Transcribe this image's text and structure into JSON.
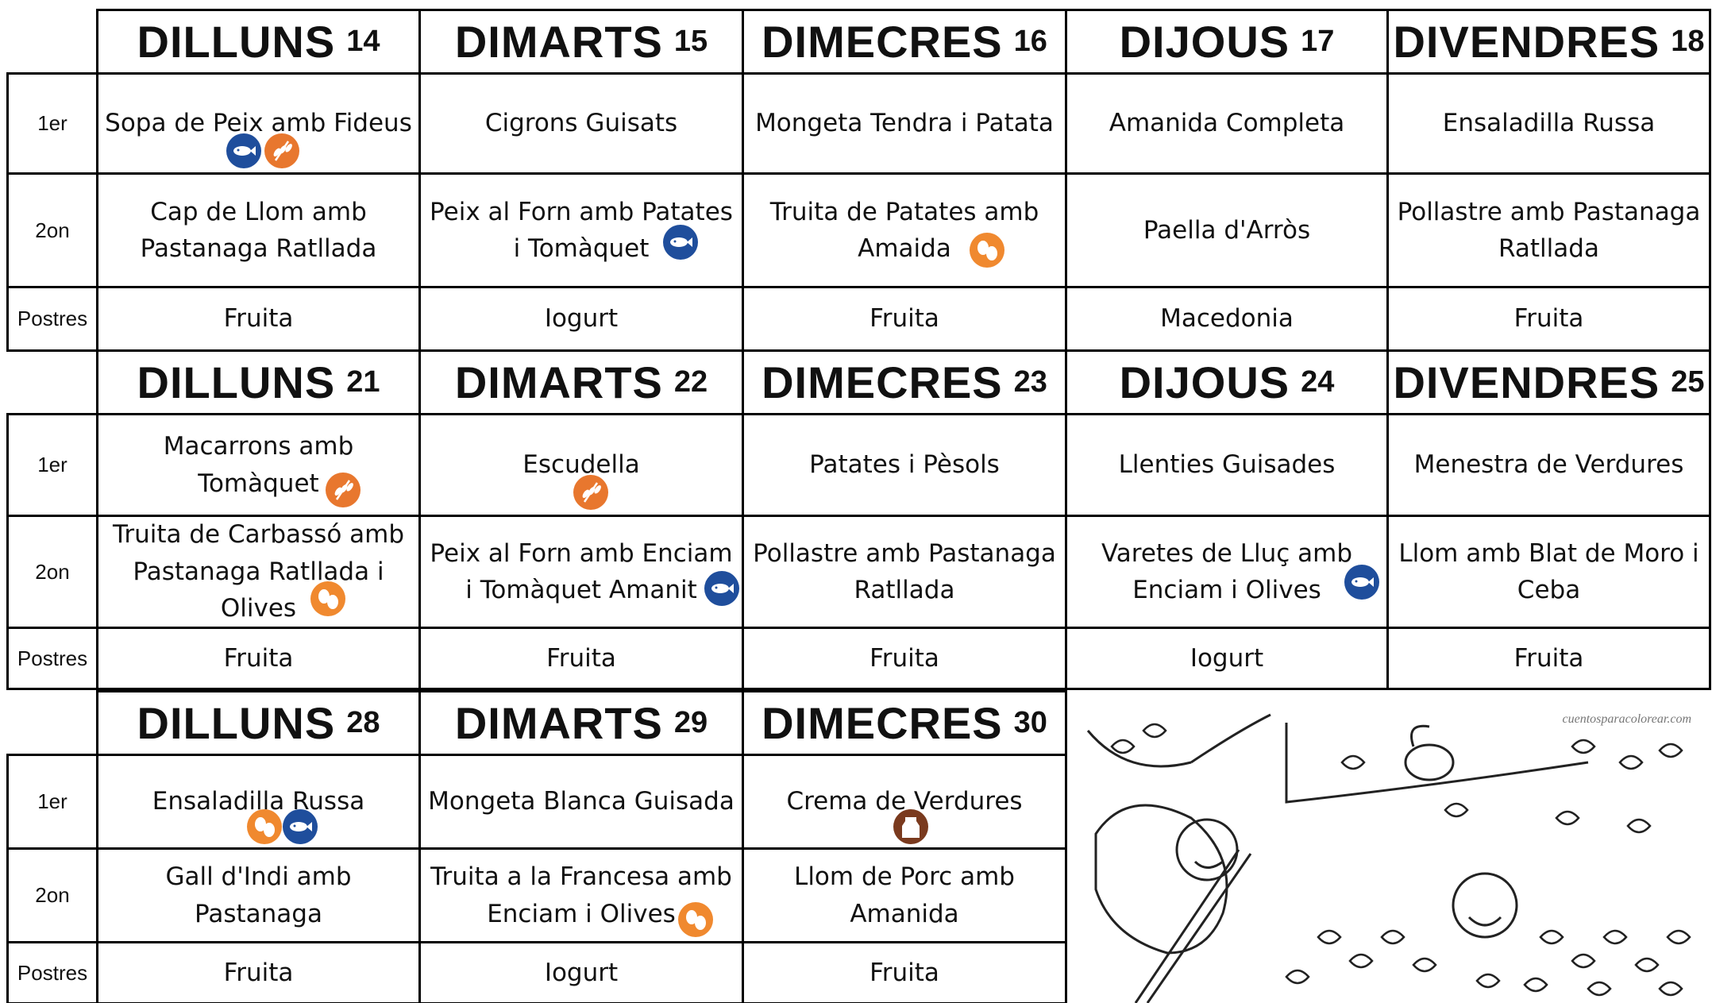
{
  "weeks": [
    {
      "days": [
        {
          "name": "DILLUNS",
          "num": 14
        },
        {
          "name": "DIMARTS",
          "num": 15
        },
        {
          "name": "DIMECRES",
          "num": 16
        },
        {
          "name": "DIJOUS",
          "num": 17
        },
        {
          "name": "DIVENDRES",
          "num": 18
        }
      ],
      "rows": [
        {
          "label": "1er",
          "cells": [
            "Sopa de Peix amb Fideus",
            "Cigrons Guisats",
            "Mongeta Tendra i Patata",
            "Amanida Completa",
            "Ensaladilla Russa"
          ]
        },
        {
          "label": "2on",
          "cells": [
            "Cap de Llom amb Pastanaga Ratllada",
            "Peix al Forn amb Patates i Tomàquet",
            "Truita de Patates amb Amaida",
            "Paella d'Arròs",
            "Pollastre amb Pastanaga Ratllada"
          ]
        },
        {
          "label": "Postres",
          "cells": [
            "Fruita",
            "Iogurt",
            "Fruita",
            "Macedonia",
            "Fruita"
          ]
        }
      ]
    },
    {
      "days": [
        {
          "name": "DILLUNS",
          "num": 21
        },
        {
          "name": "DIMARTS",
          "num": 22
        },
        {
          "name": "DIMECRES",
          "num": 23
        },
        {
          "name": "DIJOUS",
          "num": 24
        },
        {
          "name": "DIVENDRES",
          "num": 25
        }
      ],
      "rows": [
        {
          "label": "1er",
          "cells": [
            "Macarrons amb Tomàquet",
            "Escudella",
            "Patates i Pèsols",
            "Llenties Guisades",
            "Menestra de Verdures"
          ]
        },
        {
          "label": "2on",
          "cells": [
            "Truita de Carbassó amb Pastanaga Ratllada i Olives",
            "Peix al Forn amb Enciam i Tomàquet Amanit",
            "Pollastre amb Pastanaga Ratllada",
            "Varetes de Lluç amb Enciam i Olives",
            "Llom amb Blat de Moro i Ceba"
          ]
        },
        {
          "label": "Postres",
          "cells": [
            "Fruita",
            "Fruita",
            "Fruita",
            "Iogurt",
            "Fruita"
          ]
        }
      ]
    },
    {
      "days": [
        {
          "name": "DILLUNS",
          "num": 28
        },
        {
          "name": "DIMARTS",
          "num": 29
        },
        {
          "name": "DIMECRES",
          "num": 30
        }
      ],
      "rows": [
        {
          "label": "1er",
          "cells": [
            "Ensaladilla Russa",
            "Mongeta Blanca Guisada",
            "Crema de Verdures"
          ]
        },
        {
          "label": "2on",
          "cells": [
            "Gall d'Indi amb Pastanaga",
            "Truita a la Francesa amb Enciam i Olives",
            "Llom de Porc amb Amanida"
          ]
        },
        {
          "label": "Postres",
          "cells": [
            "Fruita",
            "Iogurt",
            "Fruita"
          ]
        }
      ]
    }
  ],
  "image": {
    "watermark": "cuentosparacolorear.com"
  }
}
